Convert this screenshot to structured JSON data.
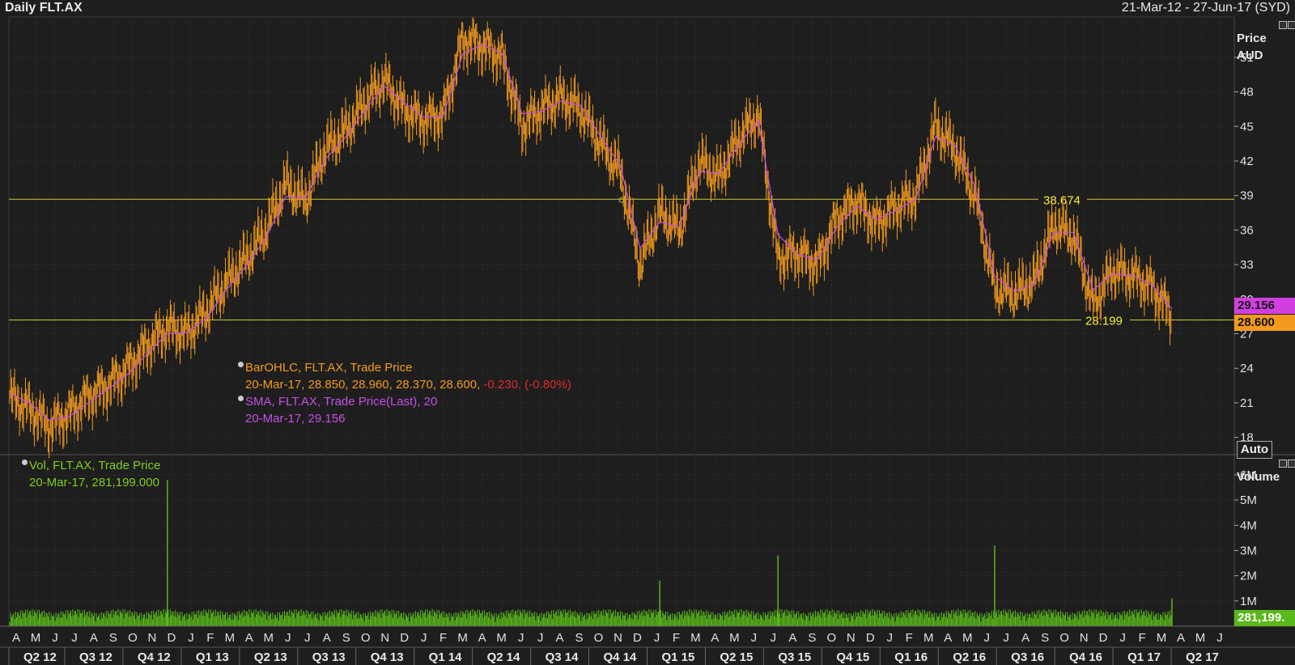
{
  "header": {
    "title": "Daily FLT.AX",
    "range": "21-Mar-12 - 27-Jun-17 (SYD)"
  },
  "price_axis": {
    "title_line1": "Price",
    "title_line2": "AUD",
    "auto_label": "Auto",
    "ticks": [
      "51",
      "48",
      "45",
      "42",
      "39",
      "36",
      "33",
      "30",
      "27",
      "24",
      "21",
      "18"
    ]
  },
  "volume_axis": {
    "title": "Volume",
    "ticks": [
      "6M",
      "5M",
      "4M",
      "3M",
      "2M",
      "1M"
    ]
  },
  "tags": {
    "sma_value": "29.156",
    "last_value": "28.600",
    "volume_value": "281,199.",
    "sma_color": "#d23fe0",
    "last_color": "#f39a1e",
    "volume_color": "#59b81a"
  },
  "hlines": {
    "upper_label": "38.674",
    "lower_label": "28.199",
    "color": "#c8c83a"
  },
  "legend": {
    "bar_line1": "BarOHLC, FLT.AX, Trade Price",
    "bar_values": "20-Mar-17, 28.850, 28.960, 28.370, 28.600,",
    "bar_change": "-0.230, (-0.80%)",
    "sma_line1": "SMA, FLT.AX, Trade Price(Last),  20",
    "sma_values": "20-Mar-17, 29.156",
    "vol_line1": "Vol, FLT.AX, Trade Price",
    "vol_values": "20-Mar-17, 281,199.000"
  },
  "chart_data": {
    "type": "line",
    "title": "Daily FLT.AX",
    "x": [
      "Apr-12",
      "May-12",
      "Jun-12",
      "Jul-12",
      "Aug-12",
      "Sep-12",
      "Oct-12",
      "Nov-12",
      "Dec-12",
      "Jan-13",
      "Feb-13",
      "Mar-13",
      "Apr-13",
      "May-13",
      "Jun-13",
      "Jul-13",
      "Aug-13",
      "Sep-13",
      "Oct-13",
      "Nov-13",
      "Dec-13",
      "Jan-14",
      "Feb-14",
      "Mar-14",
      "Apr-14",
      "May-14",
      "Jun-14",
      "Jul-14",
      "Aug-14",
      "Sep-14",
      "Oct-14",
      "Nov-14",
      "Dec-14",
      "Jan-15",
      "Feb-15",
      "Mar-15",
      "Apr-15",
      "May-15",
      "Jun-15",
      "Jul-15",
      "Aug-15",
      "Sep-15",
      "Oct-15",
      "Nov-15",
      "Dec-15",
      "Jan-16",
      "Feb-16",
      "Mar-16",
      "Apr-16",
      "May-16",
      "Jun-16",
      "Jul-16",
      "Aug-16",
      "Sep-16",
      "Oct-16",
      "Nov-16",
      "Dec-16",
      "Jan-17",
      "Feb-17",
      "Mar-17"
    ],
    "series": [
      {
        "name": "BarOHLC, FLT.AX, Trade Price",
        "values": [
          21.5,
          20.5,
          19.0,
          20.0,
          21.5,
          22.5,
          24.0,
          26.0,
          27.5,
          27.0,
          29.0,
          31.5,
          33.5,
          36.0,
          40.0,
          38.5,
          43.0,
          44.5,
          47.0,
          49.0,
          46.5,
          45.5,
          46.0,
          52.5,
          52.0,
          51.0,
          45.0,
          46.5,
          47.5,
          46.5,
          43.5,
          41.0,
          33.0,
          37.5,
          36.0,
          42.0,
          40.5,
          44.0,
          46.0,
          33.5,
          34.0,
          33.0,
          37.0,
          38.5,
          36.5,
          38.0,
          39.0,
          45.0,
          43.0,
          39.0,
          31.0,
          30.5,
          31.5,
          36.5,
          35.5,
          29.5,
          32.5,
          32.0,
          31.0,
          28.6
        ]
      },
      {
        "name": "SMA, FLT.AX, Trade Price(Last), 20",
        "values": [
          21.8,
          21.0,
          19.5,
          19.8,
          21.0,
          22.2,
          23.5,
          25.3,
          27.0,
          27.1,
          28.4,
          30.8,
          32.9,
          35.3,
          38.9,
          38.8,
          42.1,
          44.0,
          46.3,
          48.5,
          47.1,
          45.8,
          45.9,
          51.3,
          52.1,
          51.3,
          46.1,
          46.3,
          47.2,
          46.8,
          44.1,
          41.6,
          34.4,
          36.7,
          36.3,
          41.1,
          40.9,
          43.4,
          45.5,
          35.6,
          33.9,
          33.4,
          36.3,
          38.1,
          36.9,
          37.7,
          38.7,
          44.1,
          43.3,
          39.8,
          32.0,
          30.7,
          31.3,
          35.8,
          35.8,
          30.8,
          32.2,
          32.1,
          31.2,
          29.156
        ]
      }
    ],
    "volume": {
      "name": "Vol, FLT.AX, Trade Price",
      "spikes": [
        {
          "x": "Dec-12",
          "value": 5800000
        },
        {
          "x": "Jul-15",
          "value": 2800000
        },
        {
          "x": "Jun-16",
          "value": 3200000
        },
        {
          "x": "Jan-15",
          "value": 1800000
        },
        {
          "x": "Mar-17",
          "value": 1100000
        }
      ],
      "baseline_typical": 400000,
      "last": 281199
    },
    "xlabel": "",
    "ylabel": "Price AUD",
    "ylim": [
      16.5,
      54.5
    ],
    "volume_ylim": [
      0,
      6800000
    ],
    "x_months": [
      "A",
      "M",
      "J",
      "J",
      "A",
      "S",
      "O",
      "N",
      "D",
      "J",
      "F",
      "M",
      "A",
      "M",
      "J",
      "J",
      "A",
      "S",
      "O",
      "N",
      "D",
      "J",
      "F",
      "M",
      "A",
      "M",
      "J",
      "J",
      "A",
      "S",
      "O",
      "N",
      "D",
      "J",
      "F",
      "M",
      "A",
      "M",
      "J",
      "J",
      "A",
      "S",
      "O",
      "N",
      "D",
      "J",
      "F",
      "M",
      "A",
      "M",
      "J",
      "J",
      "A",
      "S",
      "O",
      "N",
      "D",
      "J",
      "F",
      "M",
      "A",
      "M",
      "J"
    ],
    "x_quarters": [
      "Q2 12",
      "Q3 12",
      "Q4 12",
      "Q1 13",
      "Q2 13",
      "Q3 13",
      "Q4 13",
      "Q1 14",
      "Q2 14",
      "Q3 14",
      "Q4 14",
      "Q1 15",
      "Q2 15",
      "Q3 15",
      "Q4 15",
      "Q1 16",
      "Q2 16",
      "Q3 16",
      "Q4 16",
      "Q1 17",
      "Q2 17"
    ],
    "hlines": [
      38.674,
      28.199
    ],
    "grid": true,
    "colors": {
      "price": "#f39a1e",
      "sma": "#c64fe8",
      "volume": "#59b81a",
      "background": "#1e1e1e"
    }
  }
}
